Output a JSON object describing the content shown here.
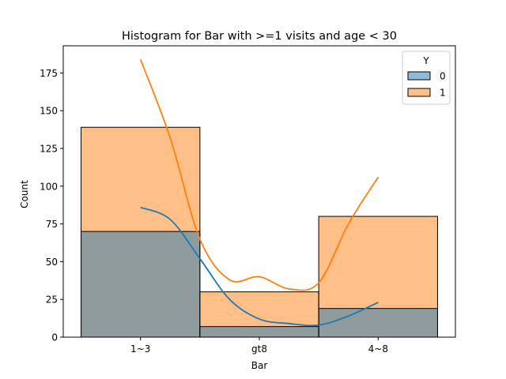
{
  "chart_data": {
    "type": "bar",
    "title": "Histogram for Bar with >=1 visits and age < 30",
    "xlabel": "Bar",
    "ylabel": "Count",
    "categories": [
      "1~3",
      "gt8",
      "4~8"
    ],
    "ylim": [
      0,
      193
    ],
    "yticks": [
      0,
      25,
      50,
      75,
      100,
      125,
      150,
      175
    ],
    "grid": false,
    "legend": {
      "title": "Y",
      "placement": "top-right"
    },
    "series": [
      {
        "name": "0",
        "values": [
          70,
          7,
          19
        ],
        "color": "#1f77b4"
      },
      {
        "name": "1",
        "values": [
          139,
          30,
          80
        ],
        "color": "#ff7f0e"
      }
    ],
    "kde": [
      {
        "series": "0",
        "color": "#1f77b4",
        "x": [
          0,
          0.25,
          0.5,
          0.75,
          1.0,
          1.25,
          1.5,
          1.75,
          2.0
        ],
        "y": [
          86,
          78,
          52,
          25,
          12,
          9,
          8,
          14,
          23
        ]
      },
      {
        "series": "1",
        "color": "#ff7f0e",
        "x": [
          0,
          0.25,
          0.5,
          0.75,
          1.0,
          1.25,
          1.5,
          1.75,
          2.0
        ],
        "y": [
          184,
          132,
          65,
          38,
          40,
          32,
          36,
          75,
          106
        ]
      }
    ]
  }
}
